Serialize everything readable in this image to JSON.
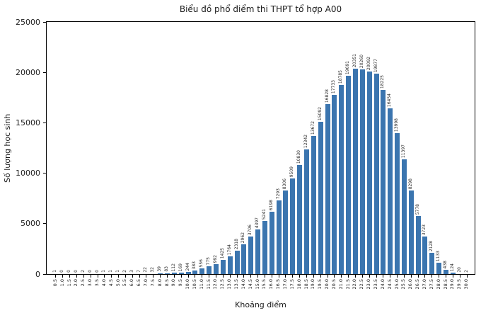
{
  "chart_data": {
    "type": "bar",
    "title": "Biểu đồ phổ điểm thi THPT tổ hợp A00",
    "xlabel": "Khoảng điểm",
    "ylabel": "Số lượng học sinh",
    "ylim": [
      0,
      25000
    ],
    "y_ticks": [
      0,
      5000,
      10000,
      15000,
      20000,
      25000
    ],
    "grid": false,
    "legend": "none",
    "bar_color": "#3b75af",
    "categories": [
      "0.5",
      "1.0",
      "1.5",
      "2.0",
      "2.5",
      "3.0",
      "3.5",
      "4.0",
      "4.5",
      "5.0",
      "5.5",
      "6.0",
      "6.5",
      "7.0",
      "7.5",
      "8.0",
      "8.5",
      "9.0",
      "9.5",
      "10.0",
      "10.5",
      "11.0",
      "11.5",
      "12.0",
      "12.5",
      "13.0",
      "13.5",
      "14.0",
      "14.5",
      "15.0",
      "15.5",
      "16.0",
      "16.5",
      "17.0",
      "17.5",
      "18.0",
      "18.5",
      "19.0",
      "19.5",
      "20.0",
      "20.5",
      "21.0",
      "21.5",
      "22.0",
      "22.5",
      "23.0",
      "23.5",
      "24.0",
      "24.5",
      "25.0",
      "25.5",
      "26.0",
      "26.5",
      "27.0",
      "27.5",
      "28.0",
      "28.5",
      "29.0",
      "29.5",
      "30.0"
    ],
    "values": [
      1,
      0,
      0,
      0,
      2,
      0,
      0,
      1,
      1,
      1,
      2,
      3,
      7,
      22,
      32,
      39,
      83,
      112,
      169,
      244,
      383,
      556,
      775,
      992,
      1425,
      1764,
      2318,
      2962,
      3706,
      4397,
      5241,
      6198,
      7293,
      8306,
      9509,
      10830,
      12342,
      13672,
      15092,
      16828,
      17733,
      18785,
      19691,
      20351,
      20260,
      20092,
      19877,
      18225,
      16454,
      13998,
      11397,
      8298,
      5778,
      3723,
      2128,
      1133,
      438,
      124,
      20,
      2
    ]
  }
}
